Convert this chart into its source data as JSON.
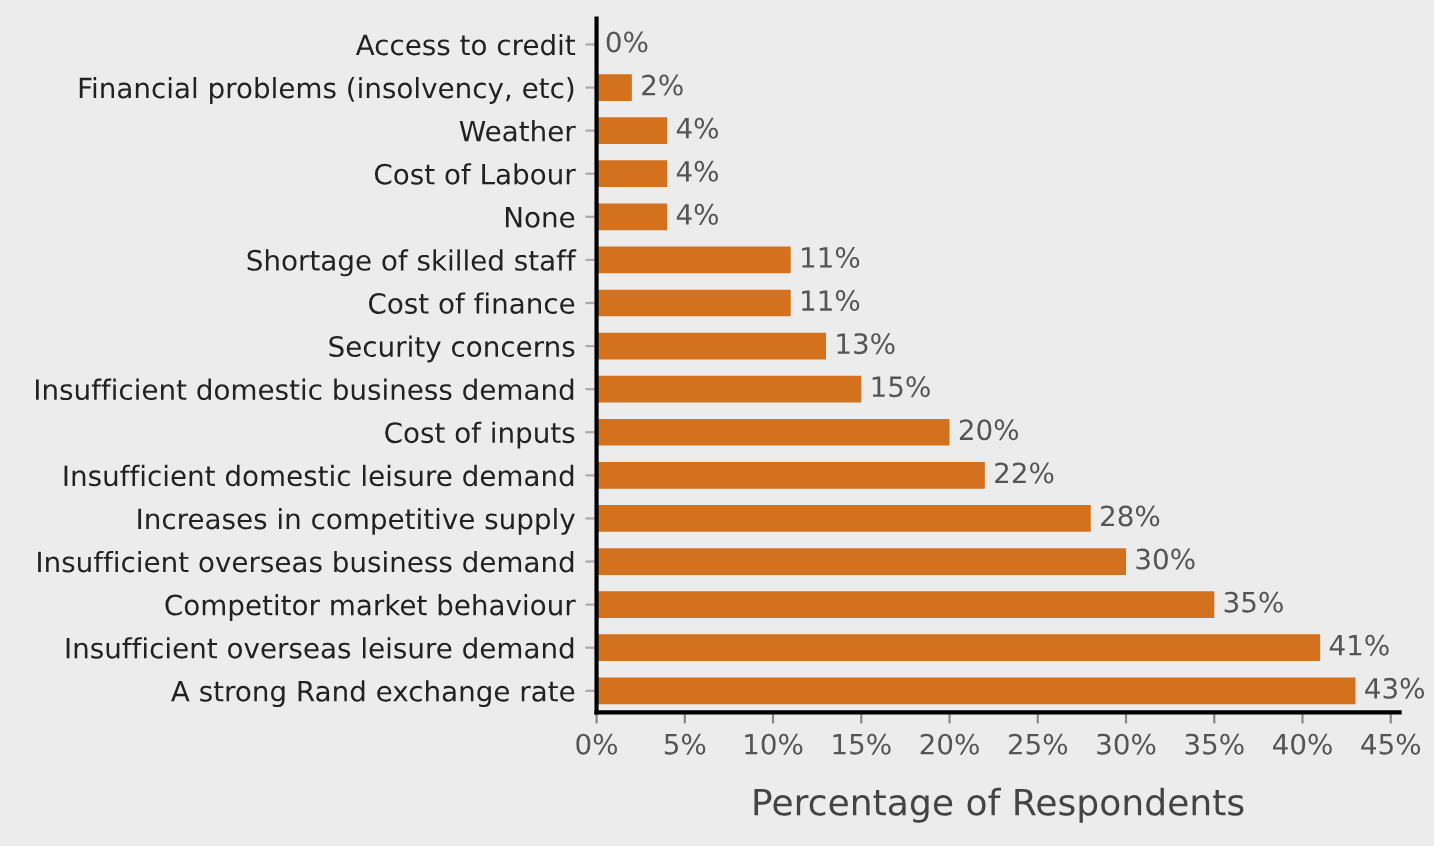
{
  "chart_data": {
    "type": "bar",
    "orientation": "horizontal",
    "xlabel": "Percentage of Respondents",
    "categories": [
      "Access to credit",
      "Financial problems (insolvency, etc)",
      "Weather",
      "Cost of Labour",
      "None",
      "Shortage of skilled staff",
      "Cost of finance",
      "Security concerns",
      "Insufficient domestic business demand",
      "Cost of inputs",
      "Insufficient domestic leisure demand",
      "Increases in competitive supply",
      "Insufficient overseas business demand",
      "Competitor market behaviour",
      "Insufficient overseas leisure demand",
      "A strong Rand exchange rate"
    ],
    "values": [
      0,
      2,
      4,
      4,
      4,
      11,
      11,
      13,
      15,
      20,
      22,
      28,
      30,
      35,
      41,
      43
    ],
    "value_labels": [
      "0%",
      "2%",
      "4%",
      "4%",
      "4%",
      "11%",
      "11%",
      "13%",
      "15%",
      "20%",
      "22%",
      "28%",
      "30%",
      "35%",
      "41%",
      "43%"
    ],
    "color": "#d4711e",
    "xlim": [
      0,
      45.5
    ],
    "xticks": [
      {
        "value": 0,
        "label": "0%"
      },
      {
        "value": 5,
        "label": "5%"
      },
      {
        "value": 10,
        "label": "10%"
      },
      {
        "value": 15,
        "label": "15%"
      },
      {
        "value": 20,
        "label": "20%"
      },
      {
        "value": 25,
        "label": "25%"
      },
      {
        "value": 30,
        "label": "30%"
      },
      {
        "value": 35,
        "label": "35%"
      },
      {
        "value": 40,
        "label": "40%"
      },
      {
        "value": 45,
        "label": "45%"
      }
    ],
    "grid": false,
    "legend": false
  }
}
